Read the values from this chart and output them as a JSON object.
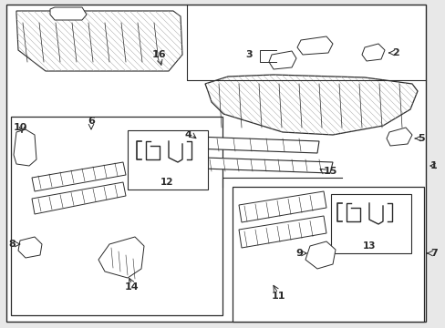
{
  "bg_color": "#e8e8e8",
  "line_color": "#2a2a2a",
  "white": "#ffffff",
  "gray": "#888888",
  "light_gray": "#cccccc"
}
